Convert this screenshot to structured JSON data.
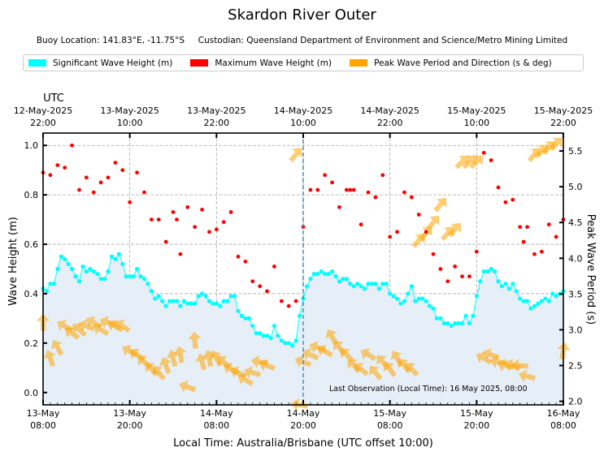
{
  "title": "Skardon River Outer",
  "subtitle_location": "Buoy Location: 141.83°E, -11.75°S",
  "subtitle_custodian": "Custodian: Queensland Department of Environment and Science/Metro Mining Limited",
  "legend": [
    {
      "label": "Significant Wave Height (m)",
      "color": "#00ffff"
    },
    {
      "label": "Maximum Wave Height (m)",
      "color": "#ff0000"
    },
    {
      "label": "Peak Wave Period and Direction (s & deg)",
      "color": "#ffa500"
    }
  ],
  "annotation": "Last Observation (Local Time): 16 May 2025, 08:00",
  "chart_data": {
    "type": "scatter",
    "title": "Skardon River Outer",
    "xlabel": "Local Time: Australia/Brisbane (UTC offset 10:00)",
    "x_units": "hours since 13-May 08:00 local",
    "xlim": [
      0,
      72
    ],
    "ylabel": "Wave Height (m)",
    "ylim": [
      -0.05,
      1.05
    ],
    "yticks": [
      "0.0",
      "0.2",
      "0.4",
      "0.6",
      "0.8",
      "1.0"
    ],
    "y2label": "Peak Wave Period (s)",
    "y2lim": [
      1.95,
      5.75
    ],
    "y2ticks": [
      "2.0",
      "2.5",
      "3.0",
      "3.5",
      "4.0",
      "4.5",
      "5.0",
      "5.5"
    ],
    "grid": true,
    "legend_position": "top",
    "bottom_ticks": [
      {
        "line1": "13-May",
        "line2": "08:00"
      },
      {
        "line1": "13-May",
        "line2": "20:00"
      },
      {
        "line1": "14-May",
        "line2": "08:00"
      },
      {
        "line1": "14-May",
        "line2": "20:00"
      },
      {
        "line1": "15-May",
        "line2": "08:00"
      },
      {
        "line1": "15-May",
        "line2": "20:00"
      },
      {
        "line1": "16-May",
        "line2": "08:00"
      }
    ],
    "top_axis_label": "UTC",
    "top_ticks": [
      {
        "line1": "12-May-2025",
        "line2": "22:00"
      },
      {
        "line1": "13-May-2025",
        "line2": "10:00"
      },
      {
        "line1": "13-May-2025",
        "line2": "22:00"
      },
      {
        "line1": "14-May-2025",
        "line2": "10:00"
      },
      {
        "line1": "14-May-2025",
        "line2": "22:00"
      },
      {
        "line1": "15-May-2025",
        "line2": "10:00"
      },
      {
        "line1": "15-May-2025",
        "line2": "22:00"
      }
    ],
    "vline_x": 36,
    "series": [
      {
        "name": "Significant Wave Height (m)",
        "kind": "line-markers-filled",
        "color": "#00ffff",
        "x_step": 0.5,
        "x_start": 0,
        "values": [
          0.42,
          0.41,
          0.44,
          0.44,
          0.5,
          0.55,
          0.54,
          0.52,
          0.5,
          0.47,
          0.45,
          0.51,
          0.49,
          0.5,
          0.49,
          0.48,
          0.46,
          0.46,
          0.49,
          0.55,
          0.54,
          0.56,
          0.52,
          0.47,
          0.47,
          0.47,
          0.5,
          0.47,
          0.46,
          0.44,
          0.41,
          0.38,
          0.39,
          0.37,
          0.35,
          0.37,
          0.37,
          0.37,
          0.35,
          0.37,
          0.36,
          0.36,
          0.36,
          0.39,
          0.4,
          0.39,
          0.37,
          0.36,
          0.36,
          0.35,
          0.37,
          0.37,
          0.39,
          0.39,
          0.33,
          0.31,
          0.3,
          0.3,
          0.27,
          0.24,
          0.24,
          0.23,
          0.23,
          0.22,
          0.27,
          0.23,
          0.21,
          0.2,
          0.2,
          0.19,
          0.21,
          0.31,
          0.38,
          0.43,
          0.46,
          0.48,
          0.48,
          0.49,
          0.48,
          0.48,
          0.49,
          0.47,
          0.45,
          0.46,
          0.46,
          0.44,
          0.43,
          0.44,
          0.43,
          0.42,
          0.44,
          0.44,
          0.44,
          0.42,
          0.44,
          0.44,
          0.4,
          0.39,
          0.38,
          0.36,
          0.37,
          0.4,
          0.43,
          0.37,
          0.38,
          0.38,
          0.37,
          0.35,
          0.34,
          0.3,
          0.3,
          0.28,
          0.28,
          0.27,
          0.28,
          0.28,
          0.28,
          0.31,
          0.28,
          0.31,
          0.39,
          0.45,
          0.49,
          0.49,
          0.5,
          0.49,
          0.45,
          0.43,
          0.44,
          0.42,
          0.44,
          0.41,
          0.38,
          0.37,
          0.37,
          0.34,
          0.35,
          0.36,
          0.37,
          0.38,
          0.37,
          0.4,
          0.39,
          0.4,
          0.41
        ]
      },
      {
        "name": "Maximum Wave Height (m)",
        "kind": "markers",
        "color": "#ff0000",
        "points": [
          [
            0,
            0.89
          ],
          [
            1,
            0.88
          ],
          [
            2,
            0.92
          ],
          [
            3,
            0.91
          ],
          [
            4,
            1.0
          ],
          [
            5,
            0.82
          ],
          [
            6,
            0.87
          ],
          [
            7,
            0.81
          ],
          [
            8,
            0.85
          ],
          [
            9,
            0.87
          ],
          [
            10,
            0.93
          ],
          [
            11,
            0.9
          ],
          [
            12,
            0.77
          ],
          [
            13,
            0.89
          ],
          [
            14,
            0.81
          ],
          [
            15,
            0.7
          ],
          [
            16,
            0.7
          ],
          [
            17,
            0.61
          ],
          [
            18,
            0.73
          ],
          [
            18.5,
            0.7
          ],
          [
            19,
            0.56
          ],
          [
            20,
            0.75
          ],
          [
            21,
            0.67
          ],
          [
            22,
            0.74
          ],
          [
            23,
            0.65
          ],
          [
            24,
            0.66
          ],
          [
            25,
            0.69
          ],
          [
            26,
            0.73
          ],
          [
            27,
            0.55
          ],
          [
            28,
            0.53
          ],
          [
            29,
            0.45
          ],
          [
            30,
            0.43
          ],
          [
            31,
            0.41
          ],
          [
            32,
            0.51
          ],
          [
            33,
            0.37
          ],
          [
            34,
            0.35
          ],
          [
            35,
            0.37
          ],
          [
            36,
            0.67
          ],
          [
            37,
            0.82
          ],
          [
            38,
            0.82
          ],
          [
            39,
            0.88
          ],
          [
            40,
            0.85
          ],
          [
            41,
            0.75
          ],
          [
            42,
            0.82
          ],
          [
            42.5,
            0.82
          ],
          [
            43,
            0.82
          ],
          [
            44,
            0.68
          ],
          [
            45,
            0.81
          ],
          [
            46,
            0.79
          ],
          [
            47,
            0.88
          ],
          [
            48,
            0.63
          ],
          [
            49,
            0.65
          ],
          [
            50,
            0.81
          ],
          [
            51,
            0.79
          ],
          [
            52,
            0.72
          ],
          [
            53,
            0.65
          ],
          [
            54,
            0.56
          ],
          [
            55,
            0.5
          ],
          [
            56,
            0.45
          ],
          [
            57,
            0.51
          ],
          [
            58,
            0.47
          ],
          [
            59,
            0.47
          ],
          [
            60,
            0.57
          ],
          [
            61,
            0.97
          ],
          [
            62,
            0.94
          ],
          [
            63,
            0.83
          ],
          [
            64,
            0.77
          ],
          [
            65,
            0.78
          ],
          [
            66,
            0.67
          ],
          [
            66.5,
            0.61
          ],
          [
            67,
            0.67
          ],
          [
            68,
            0.56
          ],
          [
            69,
            0.57
          ],
          [
            70,
            0.68
          ],
          [
            71,
            0.63
          ],
          [
            72,
            0.7
          ]
        ]
      },
      {
        "name": "Peak Wave Period and Direction (s & deg)",
        "kind": "arrows",
        "color": "#ffa500",
        "note": "arrow position = period on right axis; arrow points toward direction of travel (deg, compass)",
        "points": [
          [
            0,
            3.1,
            0
          ],
          [
            1,
            2.6,
            340
          ],
          [
            2,
            2.75,
            330
          ],
          [
            3,
            3.05,
            300
          ],
          [
            4,
            2.95,
            305
          ],
          [
            5,
            3.0,
            310
          ],
          [
            6,
            3.05,
            290
          ],
          [
            7,
            3.1,
            300
          ],
          [
            8,
            3.0,
            300
          ],
          [
            9,
            3.1,
            290
          ],
          [
            10,
            3.05,
            300
          ],
          [
            11,
            3.05,
            305
          ],
          [
            12,
            2.7,
            300
          ],
          [
            13,
            2.65,
            305
          ],
          [
            14,
            2.55,
            310
          ],
          [
            15,
            2.45,
            315
          ],
          [
            16,
            2.4,
            320
          ],
          [
            17,
            2.5,
            340
          ],
          [
            18,
            2.6,
            345
          ],
          [
            19,
            2.65,
            350
          ],
          [
            20,
            2.2,
            290
          ],
          [
            21,
            2.85,
            355
          ],
          [
            22,
            2.55,
            345
          ],
          [
            23,
            2.6,
            350
          ],
          [
            24,
            2.6,
            330
          ],
          [
            25,
            2.55,
            315
          ],
          [
            26,
            2.45,
            300
          ],
          [
            27,
            2.4,
            295
          ],
          [
            28,
            2.3,
            300
          ],
          [
            29,
            2.4,
            285
          ],
          [
            30,
            2.55,
            280
          ],
          [
            31,
            2.5,
            290
          ],
          [
            35,
            5.45,
            40
          ],
          [
            35.5,
            1.95,
            280
          ],
          [
            36,
            2.55,
            290
          ],
          [
            37,
            2.65,
            295
          ],
          [
            38,
            2.75,
            290
          ],
          [
            39,
            2.7,
            300
          ],
          [
            40,
            2.9,
            330
          ],
          [
            41,
            2.75,
            320
          ],
          [
            42,
            2.65,
            315
          ],
          [
            43,
            2.5,
            315
          ],
          [
            44,
            2.45,
            310
          ],
          [
            45,
            2.65,
            300
          ],
          [
            46,
            2.4,
            320
          ],
          [
            47,
            2.55,
            320
          ],
          [
            48,
            2.45,
            325
          ],
          [
            49,
            2.6,
            330
          ],
          [
            50,
            2.5,
            320
          ],
          [
            51,
            2.45,
            315
          ],
          [
            52,
            4.25,
            40
          ],
          [
            53,
            4.35,
            40
          ],
          [
            54,
            4.5,
            40
          ],
          [
            55,
            4.75,
            40
          ],
          [
            56,
            4.35,
            40
          ],
          [
            57,
            4.4,
            40
          ],
          [
            58,
            5.35,
            45
          ],
          [
            59,
            5.35,
            45
          ],
          [
            60,
            5.35,
            45
          ],
          [
            61,
            2.6,
            300
          ],
          [
            62,
            2.65,
            290
          ],
          [
            63,
            2.55,
            280
          ],
          [
            64,
            2.5,
            285
          ],
          [
            65,
            2.5,
            290
          ],
          [
            66,
            2.5,
            275
          ],
          [
            67,
            2.35,
            285
          ],
          [
            68,
            5.45,
            40
          ],
          [
            69,
            5.5,
            45
          ],
          [
            70,
            5.55,
            45
          ],
          [
            71,
            5.6,
            45
          ],
          [
            72,
            2.7,
            10
          ]
        ]
      }
    ]
  }
}
